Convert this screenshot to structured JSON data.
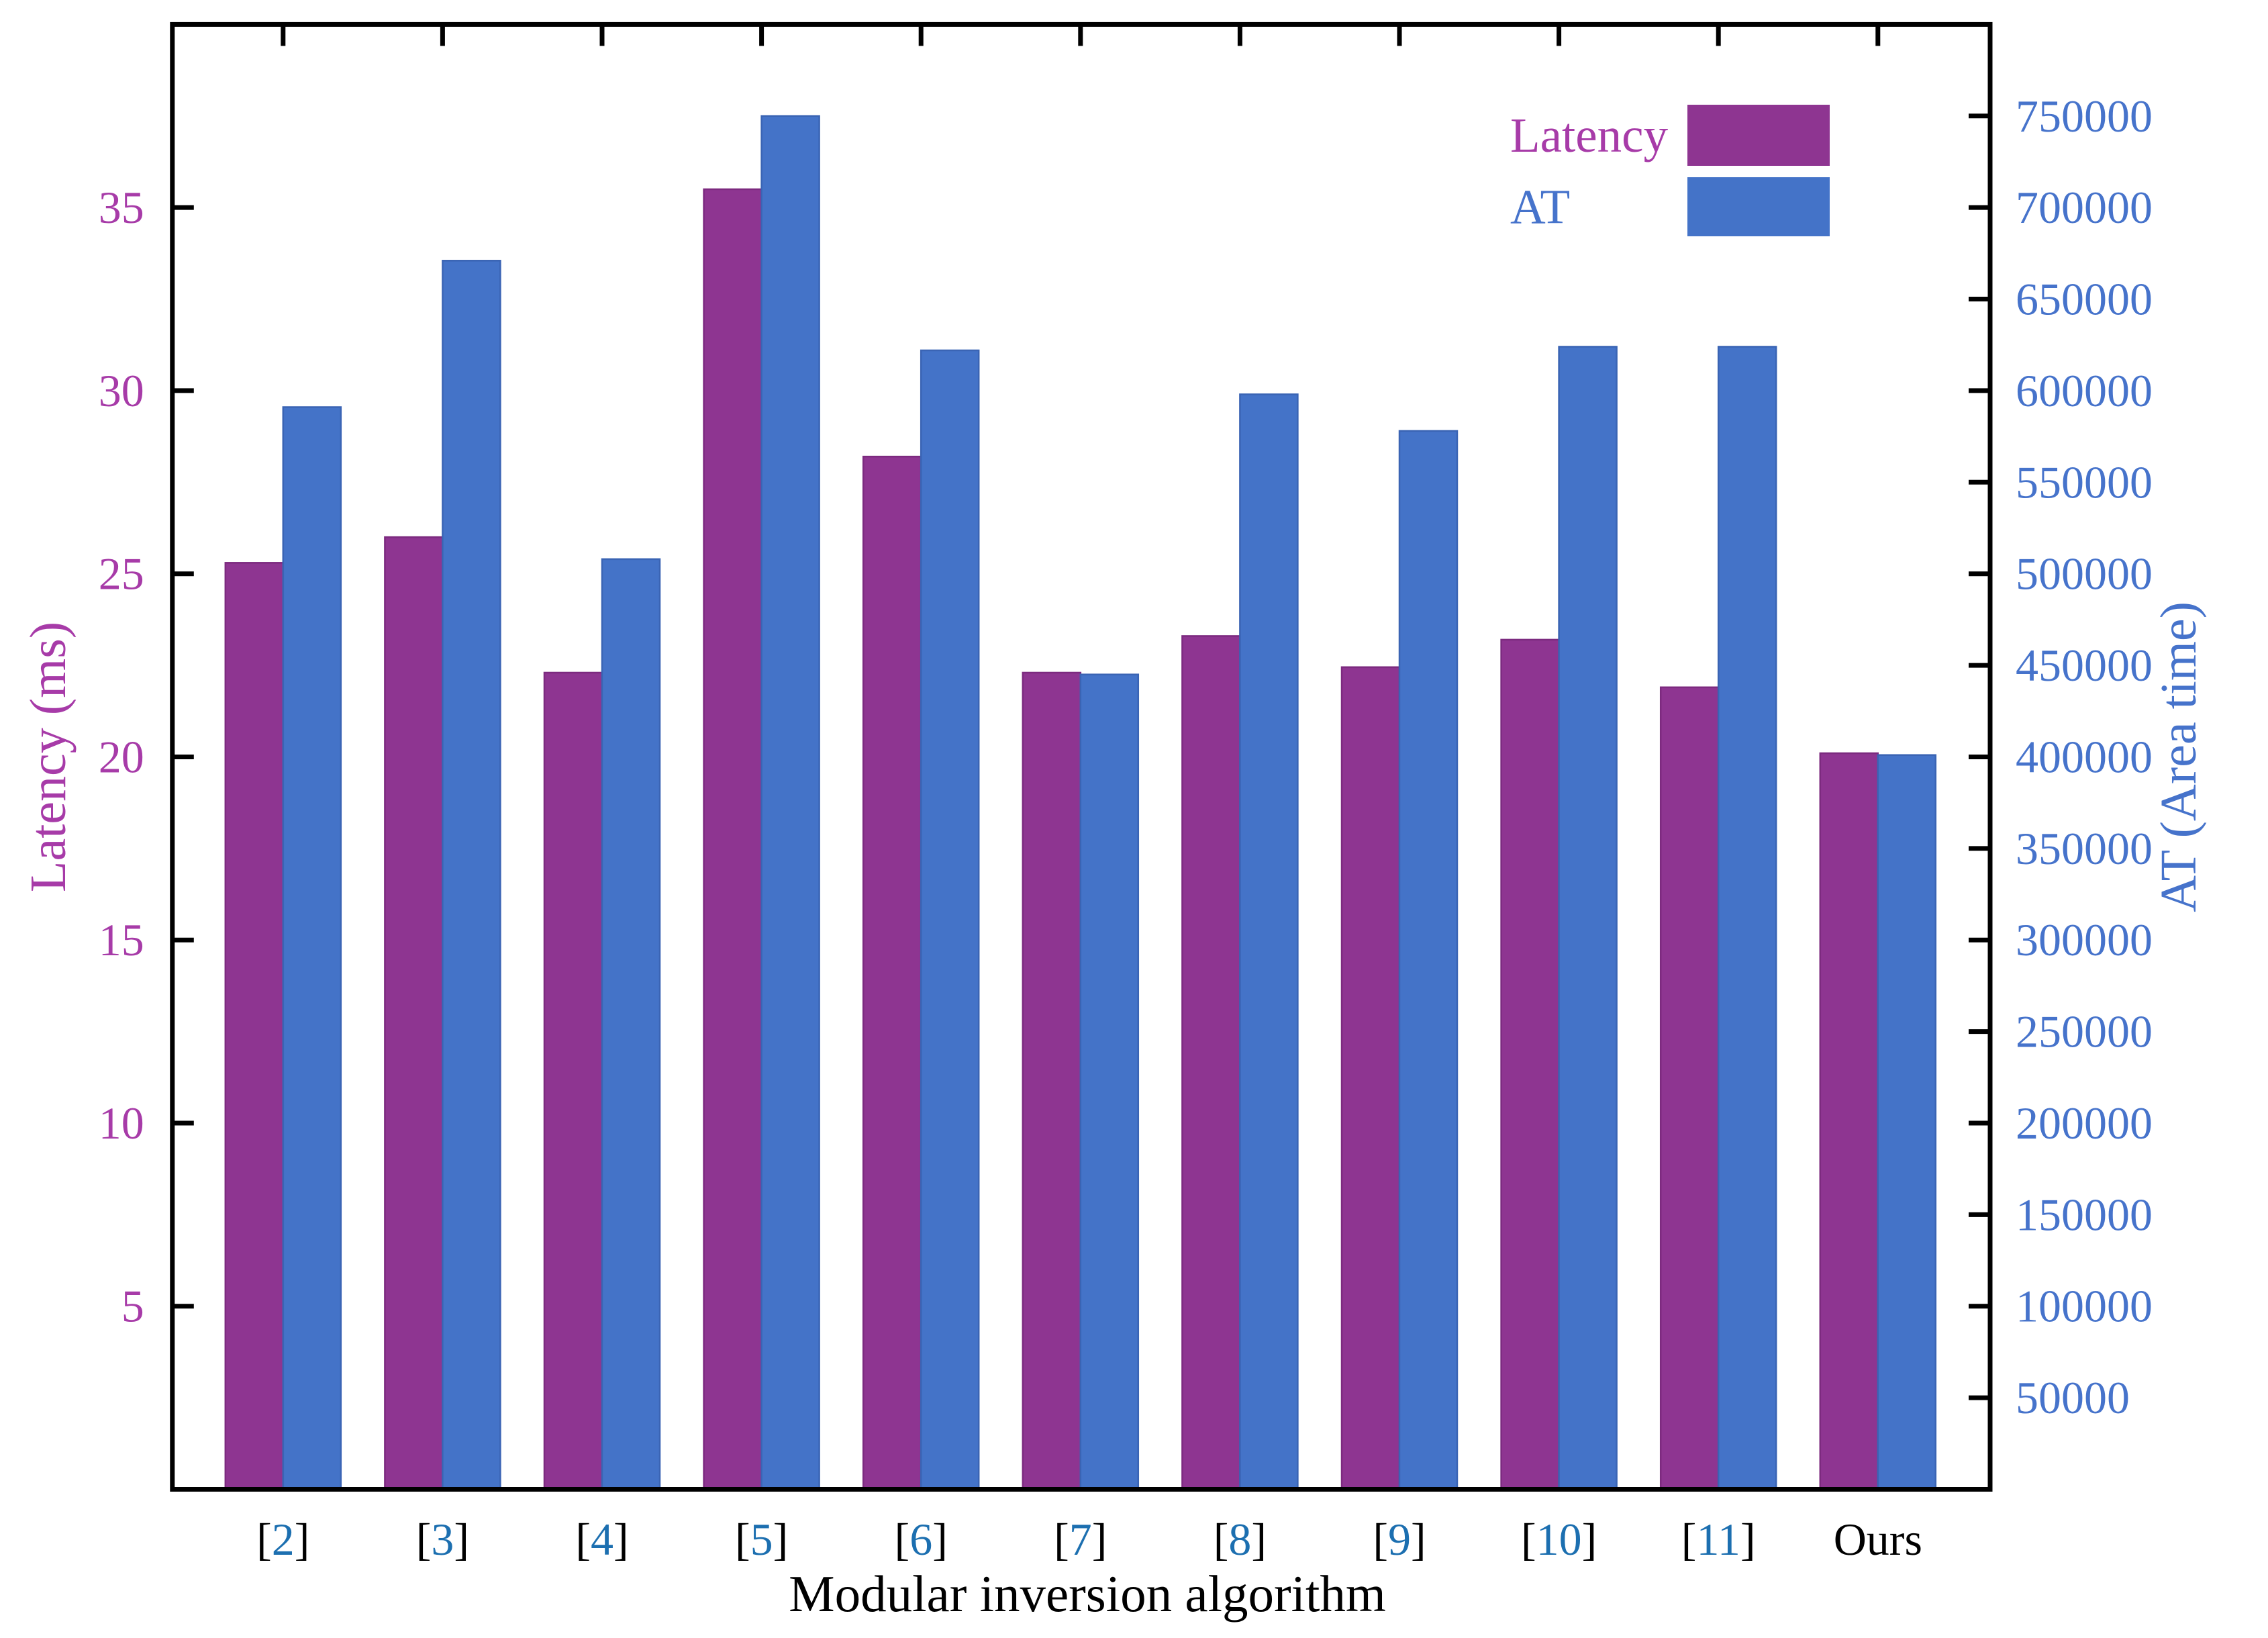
{
  "figure": {
    "type": "grouped-bar-chart-dual-axis",
    "background": "#ffffff"
  },
  "chart_data": {
    "type": "bar",
    "title": "",
    "xlabel": "Modular inversion algorithm",
    "ylabel_left": "Latency (ms)",
    "ylabel_right": "AT (Area time)",
    "categories": [
      "[2]",
      "[3]",
      "[4]",
      "[5]",
      "[6]",
      "[7]",
      "[8]",
      "[9]",
      "[10]",
      "[11]",
      "Ours"
    ],
    "series": [
      {
        "name": "Latency",
        "axis": "left",
        "values": [
          25.3,
          26.0,
          22.3,
          35.5,
          28.2,
          22.3,
          23.3,
          22.45,
          23.2,
          21.9,
          20.1
        ]
      },
      {
        "name": "AT",
        "axis": "right",
        "values": [
          591000,
          671000,
          508000,
          750000,
          622000,
          445000,
          598000,
          578000,
          624000,
          624000,
          401000
        ]
      }
    ],
    "axis_left": {
      "min": 0,
      "max": 40,
      "tick_step": 5,
      "tick_labels": [
        "5",
        "10",
        "15",
        "20",
        "25",
        "30",
        "35"
      ]
    },
    "axis_right": {
      "min": 0,
      "max": 800000,
      "tick_step": 50000,
      "tick_labels": [
        "50000",
        "100000",
        "150000",
        "200000",
        "250000",
        "300000",
        "350000",
        "400000",
        "450000",
        "500000",
        "550000",
        "600000",
        "650000",
        "700000",
        "750000"
      ]
    },
    "legend": {
      "position": "top-right-inside",
      "entries": [
        "Latency",
        "AT"
      ]
    },
    "grid": false
  },
  "colors": {
    "bar_latency_fill": "#8e3591",
    "bar_latency_edge": "#7c2a7f",
    "bar_at_fill": "#4473c8",
    "bar_at_edge": "#3a64b4",
    "text_latency": "#a73ba8",
    "text_at": "#4673cb",
    "citation_digit_blue": "#1c6fb0",
    "axis_black": "#000000",
    "background": "#ffffff"
  }
}
